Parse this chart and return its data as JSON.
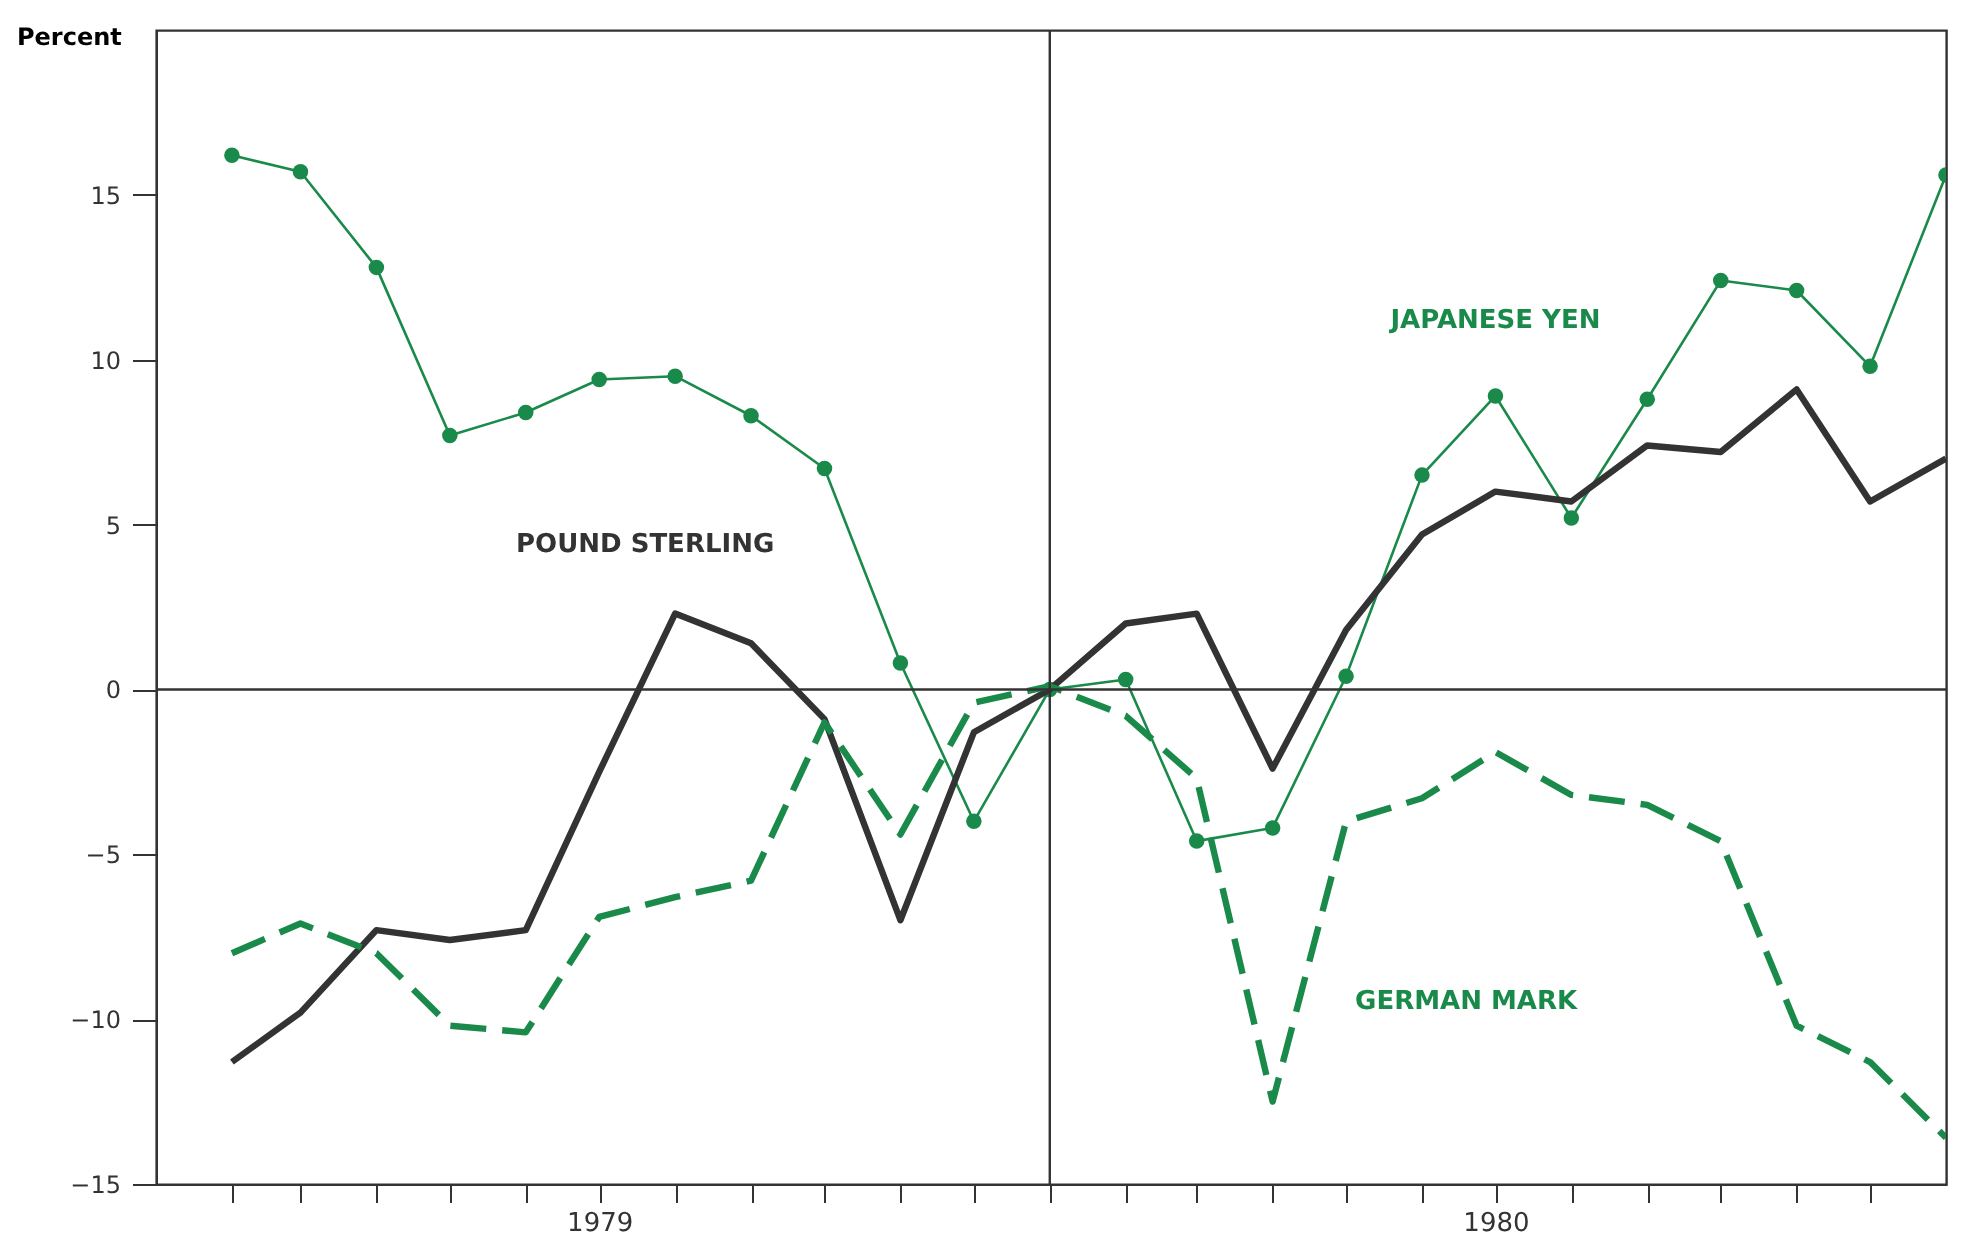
{
  "chart_data": {
    "type": "line",
    "ylabel": "Percent",
    "x": [
      "1979-02",
      "1979-03",
      "1979-04",
      "1979-05",
      "1979-06",
      "1979-07",
      "1979-08",
      "1979-09",
      "1979-10",
      "1979-11",
      "1979-12",
      "1980-01",
      "1980-02",
      "1980-03",
      "1980-04",
      "1980-05",
      "1980-06",
      "1980-07",
      "1980-08",
      "1980-09",
      "1980-10",
      "1980-11",
      "1980-12",
      "1981-01"
    ],
    "series": [
      {
        "name": "JAPANESE YEN",
        "color": "#1a8a4a",
        "marker": "circle",
        "line_style": "solid",
        "values": [
          16.2,
          15.7,
          12.8,
          7.7,
          8.4,
          9.4,
          9.5,
          8.3,
          6.7,
          0.8,
          -4.0,
          0.0,
          0.3,
          -4.6,
          -4.2,
          0.4,
          6.5,
          8.9,
          5.2,
          8.8,
          12.4,
          12.1,
          9.8,
          15.6
        ]
      },
      {
        "name": "POUND STERLING",
        "color": "#333333",
        "marker": "none",
        "line_style": "solid",
        "values": [
          -11.3,
          -9.8,
          -7.3,
          -7.6,
          -7.3,
          -2.5,
          2.3,
          1.4,
          -0.9,
          -7.0,
          -1.3,
          0.0,
          2.0,
          2.3,
          -2.4,
          1.8,
          4.7,
          6.0,
          5.7,
          7.4,
          7.2,
          9.1,
          5.7,
          7.0
        ]
      },
      {
        "name": "GERMAN MARK",
        "color": "#1a8a4a",
        "marker": "none",
        "line_style": "dashed",
        "values": [
          -8.0,
          -7.1,
          -8.0,
          -10.2,
          -10.4,
          -6.9,
          -6.3,
          -5.8,
          -1.0,
          -4.4,
          -0.4,
          0.1,
          -0.8,
          -2.7,
          -12.5,
          -4.0,
          -3.3,
          -1.9,
          -3.2,
          -3.5,
          -4.6,
          -10.2,
          -11.3,
          -13.6
        ]
      }
    ],
    "xlim": [
      "1979-01",
      "1981-01"
    ],
    "ylim": [
      -15,
      20
    ],
    "xticks": [
      {
        "value": "1979-02",
        "label": null
      },
      {
        "value": "1979-03",
        "label": null
      },
      {
        "value": "1979-04",
        "label": null
      },
      {
        "value": "1979-05",
        "label": null
      },
      {
        "value": "1979-06",
        "label": null
      },
      {
        "value": "1979-07",
        "label": "1979"
      },
      {
        "value": "1979-08",
        "label": null
      },
      {
        "value": "1979-09",
        "label": null
      },
      {
        "value": "1979-10",
        "label": null
      },
      {
        "value": "1979-11",
        "label": null
      },
      {
        "value": "1979-12",
        "label": null
      },
      {
        "value": "1980-01",
        "label": null
      },
      {
        "value": "1980-02",
        "label": null
      },
      {
        "value": "1980-03",
        "label": null
      },
      {
        "value": "1980-04",
        "label": null
      },
      {
        "value": "1980-05",
        "label": null
      },
      {
        "value": "1980-06",
        "label": null
      },
      {
        "value": "1980-07",
        "label": "1980"
      },
      {
        "value": "1980-08",
        "label": null
      },
      {
        "value": "1980-09",
        "label": null
      },
      {
        "value": "1980-10",
        "label": null
      },
      {
        "value": "1980-11",
        "label": null
      },
      {
        "value": "1980-12",
        "label": null
      }
    ],
    "yticks": [
      -15,
      -10,
      -5,
      0,
      5,
      10,
      15
    ],
    "ref_lines": [
      {
        "axis": "y",
        "value": 0,
        "color": "#333333"
      },
      {
        "axis": "x",
        "value": "1980-01",
        "color": "#333333"
      }
    ],
    "grid": false
  }
}
